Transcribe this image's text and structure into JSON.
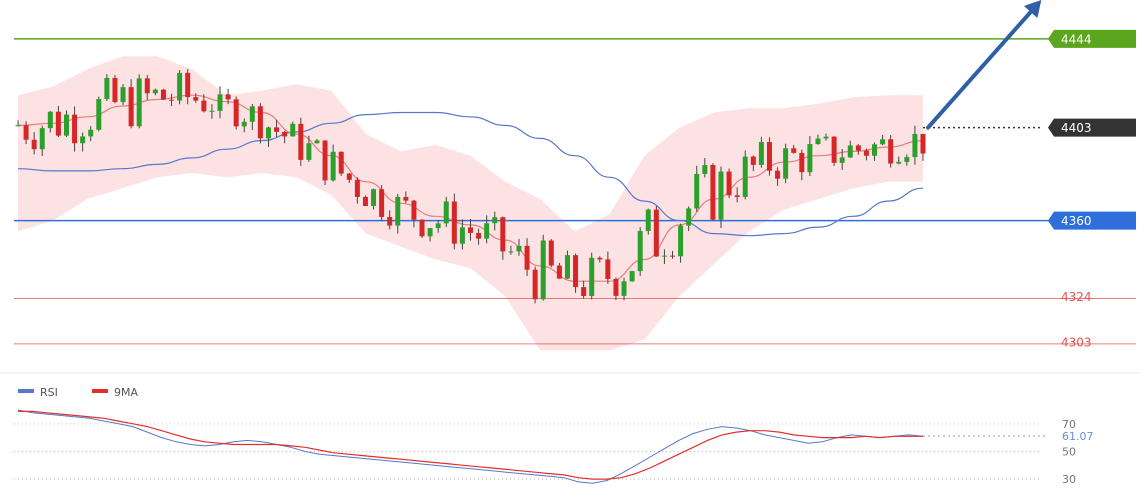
{
  "chart_data": [
    {
      "type": "candlestick",
      "ylim": [
        4290,
        4462
      ],
      "levels": [
        {
          "value": 4444,
          "label": "4444",
          "color": "#5aa61e",
          "style": "solid-badge"
        },
        {
          "value": 4403,
          "label": "4403",
          "color": "#333333",
          "style": "dotted-badge"
        },
        {
          "value": 4360,
          "label": "4360",
          "color": "#2e6fdc",
          "style": "solid-badge"
        },
        {
          "value": 4324,
          "label": "4324",
          "color": "#e45050",
          "style": "solid-text"
        },
        {
          "value": 4303,
          "label": "4303",
          "color": "#e45050",
          "style": "solid-text"
        }
      ],
      "colors": {
        "up": "#2ca02c",
        "down": "#d62728",
        "band": "#f9caca",
        "ma_slow": "#5577cc",
        "ma_fast": "#e86a6a",
        "arrow": "#2f5fa6"
      },
      "ma_slow": [
        4384,
        4383,
        4383,
        4384,
        4386,
        4389,
        4393,
        4397,
        4401,
        4405,
        4409,
        4410,
        4410,
        4408,
        4404,
        4398,
        4390,
        4380,
        4369,
        4360,
        4354,
        4353,
        4354,
        4357,
        4362,
        4369,
        4375
      ],
      "ma_fast": [
        4404,
        4405,
        4408,
        4413,
        4416,
        4418,
        4415,
        4410,
        4400,
        4390,
        4378,
        4368,
        4362,
        4358,
        4351,
        4339,
        4332,
        4332,
        4342,
        4358,
        4370,
        4380,
        4387,
        4390,
        4392,
        4394,
        4397
      ],
      "band_upper": [
        4418,
        4422,
        4430,
        4436,
        4436,
        4430,
        4418,
        4420,
        4423,
        4420,
        4400,
        4392,
        4395,
        4390,
        4378,
        4370,
        4355,
        4363,
        4390,
        4403,
        4410,
        4412,
        4412,
        4414,
        4417,
        4418,
        4418
      ],
      "band_lower": [
        4355,
        4360,
        4370,
        4375,
        4380,
        4382,
        4380,
        4382,
        4380,
        4372,
        4354,
        4348,
        4342,
        4338,
        4325,
        4300,
        4300,
        4300,
        4305,
        4325,
        4340,
        4355,
        4365,
        4370,
        4375,
        4378,
        4378
      ]
    },
    {
      "type": "line",
      "legend": [
        {
          "name": "RSI",
          "color": "#5577cc"
        },
        {
          "name": "9MA",
          "color": "#e0302a"
        }
      ],
      "ylim": [
        25,
        80
      ],
      "ticks": [
        70,
        50,
        30
      ],
      "current": "61.07",
      "rsi": [
        80,
        78,
        77,
        76,
        75,
        74,
        72,
        70,
        68,
        64,
        60,
        57,
        55,
        54,
        55,
        57,
        58,
        57,
        55,
        53,
        50,
        48,
        47,
        46,
        45,
        44,
        43,
        42,
        41,
        40,
        39,
        38,
        37,
        36,
        35,
        34,
        33,
        32,
        31,
        28,
        27,
        29,
        34,
        40,
        46,
        52,
        58,
        63,
        66,
        68,
        67,
        65,
        62,
        60,
        58,
        56,
        57,
        60,
        62,
        61,
        60,
        61,
        62,
        61
      ],
      "ma9": [
        79,
        79,
        78,
        77,
        76,
        75,
        74,
        72,
        70,
        68,
        65,
        62,
        59,
        57,
        56,
        55,
        55,
        55,
        55,
        54,
        53,
        51,
        49,
        48,
        47,
        46,
        45,
        44,
        43,
        42,
        41,
        40,
        39,
        38,
        37,
        36,
        35,
        34,
        33,
        31,
        30,
        30,
        31,
        34,
        38,
        43,
        48,
        53,
        58,
        62,
        64,
        65,
        65,
        64,
        62,
        61,
        60,
        60,
        60,
        61,
        60,
        61,
        61,
        61
      ]
    }
  ]
}
